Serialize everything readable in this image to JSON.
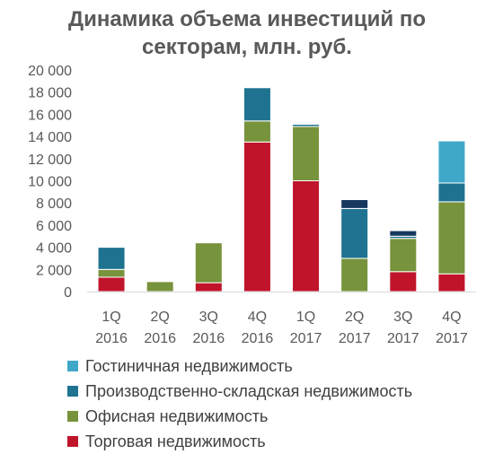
{
  "chart_data": {
    "type": "bar",
    "stacked": true,
    "title_lines": [
      "Динамика объема инвестиций по",
      "секторам, млн. руб."
    ],
    "categories": [
      [
        "1Q",
        "2016"
      ],
      [
        "2Q",
        "2016"
      ],
      [
        "3Q",
        "2016"
      ],
      [
        "4Q",
        "2016"
      ],
      [
        "1Q",
        "2017"
      ],
      [
        "2Q",
        "2017"
      ],
      [
        "3Q",
        "2017"
      ],
      [
        "4Q",
        "2017"
      ]
    ],
    "ylim": [
      0,
      20000
    ],
    "yticks": [
      {
        "value": 0,
        "label": "0"
      },
      {
        "value": 2000,
        "label": "2 000"
      },
      {
        "value": 4000,
        "label": "4 000"
      },
      {
        "value": 6000,
        "label": "6 000"
      },
      {
        "value": 8000,
        "label": "8 000"
      },
      {
        "value": 10000,
        "label": "10 000"
      },
      {
        "value": 12000,
        "label": "12 000"
      },
      {
        "value": 14000,
        "label": "14 000"
      },
      {
        "value": 16000,
        "label": "16 000"
      },
      {
        "value": 18000,
        "label": "18 000"
      },
      {
        "value": 20000,
        "label": "20 000"
      }
    ],
    "grid": false,
    "legend_position": "bottom",
    "series": [
      {
        "name": "Торговая недвижимость",
        "color": "#C0142B",
        "values": [
          1300,
          0,
          800,
          13500,
          10000,
          0,
          1800,
          1600
        ]
      },
      {
        "name": "Офисная недвижимость",
        "color": "#77933C",
        "values": [
          700,
          900,
          3600,
          1900,
          4900,
          3000,
          3000,
          6500
        ]
      },
      {
        "name": "Производственно-складская недвижимость",
        "color": "#1F7391",
        "values": [
          2000,
          0,
          0,
          3000,
          200,
          4500,
          200,
          1700
        ]
      },
      {
        "name": "Гостиничная недвижимость",
        "color": "#3FA8C9",
        "values": [
          0,
          0,
          0,
          0,
          0,
          0,
          0,
          3800
        ]
      },
      {
        "name": "",
        "color": "#17375E",
        "values": [
          0,
          0,
          0,
          0,
          0,
          800,
          500,
          0
        ]
      }
    ],
    "legend_entries": [
      {
        "label": "Гостиничная  недвижимость",
        "color": "#3FA8C9"
      },
      {
        "label": "Производственно-складская недвижимость",
        "color": "#1F7391"
      },
      {
        "label": "Офисная недвижимость",
        "color": "#77933C"
      },
      {
        "label": "Торговая недвижимость",
        "color": "#C0142B"
      }
    ]
  }
}
